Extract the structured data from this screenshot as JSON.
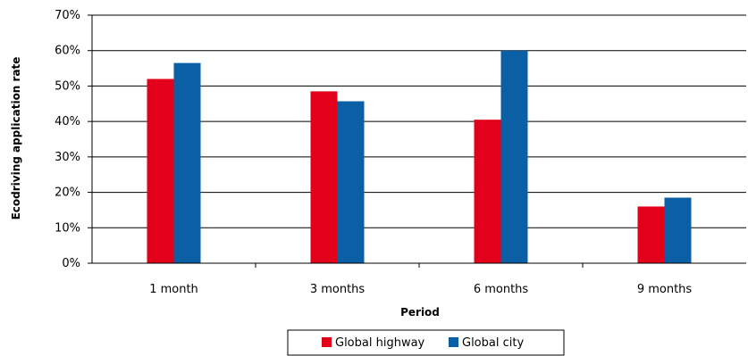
{
  "chart_data": {
    "type": "bar",
    "title": "",
    "categories": [
      "1 month",
      "3 months",
      "6 months",
      "9 months"
    ],
    "series": [
      {
        "name": "Global highway",
        "color": "#e2001a",
        "values": [
          52,
          48.5,
          40.5,
          16
        ]
      },
      {
        "name": "Global city",
        "color": "#0b5fa5",
        "values": [
          56.5,
          45.7,
          60,
          18.5
        ]
      }
    ],
    "xlabel": "Period",
    "ylabel": "Ecodriving application rate",
    "ylim": [
      0,
      70
    ],
    "yticks": [
      "0%",
      "10%",
      "20%",
      "30%",
      "40%",
      "50%",
      "60%",
      "70%"
    ],
    "grid": true,
    "legend": "bottom"
  }
}
